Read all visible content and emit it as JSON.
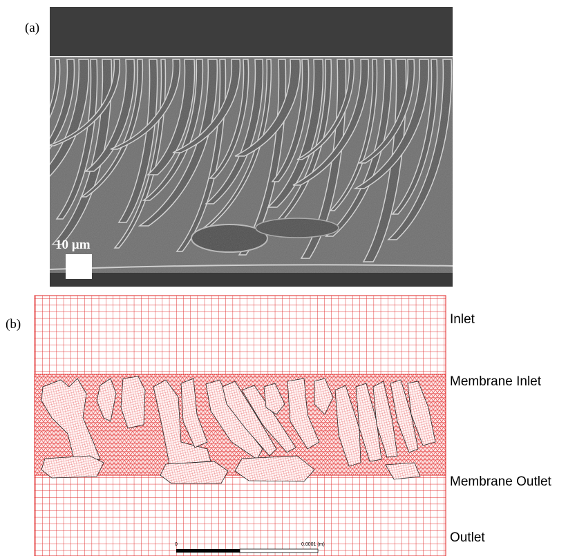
{
  "panel_a": {
    "label": "(a)",
    "scale_bar": "10 µm"
  },
  "panel_b": {
    "label": "(b)",
    "regions": [
      "Inlet",
      "Membrane Inlet",
      "Membrane Outlet",
      "Outlet"
    ],
    "scale_start": "0",
    "scale_end": "0.0001 (m)"
  }
}
